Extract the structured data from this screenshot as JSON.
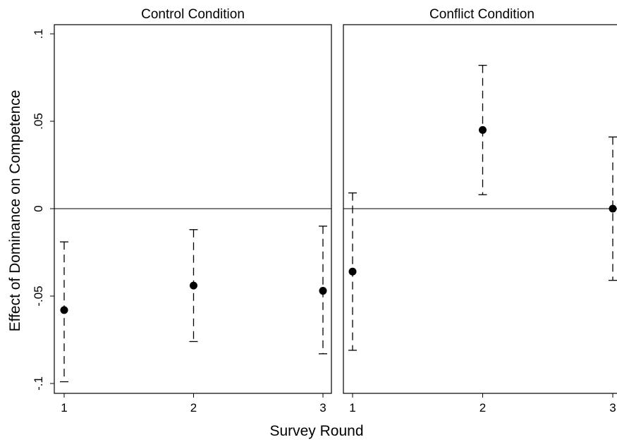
{
  "chart_data": {
    "type": "scatter",
    "ylabel": "Effect of Dominance on Competence",
    "xlabel": "Survey Round",
    "ylim": [
      -0.1,
      0.1
    ],
    "yticks": [
      -0.1,
      -0.05,
      0,
      0.05,
      0.1
    ],
    "ytick_labels": [
      "-.1",
      "-.05",
      "0",
      ".05",
      ".1"
    ],
    "xticks": [
      1,
      2,
      3
    ],
    "xtick_labels": [
      "1",
      "2",
      "3"
    ],
    "xlim": [
      1,
      3
    ],
    "reference_line": 0,
    "error_bars": "dashed",
    "panels": [
      {
        "title": "Control Condition",
        "points": [
          {
            "x": 1,
            "y": -0.058,
            "lo": -0.099,
            "hi": -0.019
          },
          {
            "x": 2,
            "y": -0.044,
            "lo": -0.076,
            "hi": -0.012
          },
          {
            "x": 3,
            "y": -0.047,
            "lo": -0.083,
            "hi": -0.01
          }
        ]
      },
      {
        "title": "Conflict Condition",
        "points": [
          {
            "x": 1,
            "y": -0.036,
            "lo": -0.081,
            "hi": 0.009
          },
          {
            "x": 2,
            "y": 0.045,
            "lo": 0.008,
            "hi": 0.082
          },
          {
            "x": 3,
            "y": 0.0,
            "lo": -0.041,
            "hi": 0.041
          }
        ]
      }
    ]
  }
}
